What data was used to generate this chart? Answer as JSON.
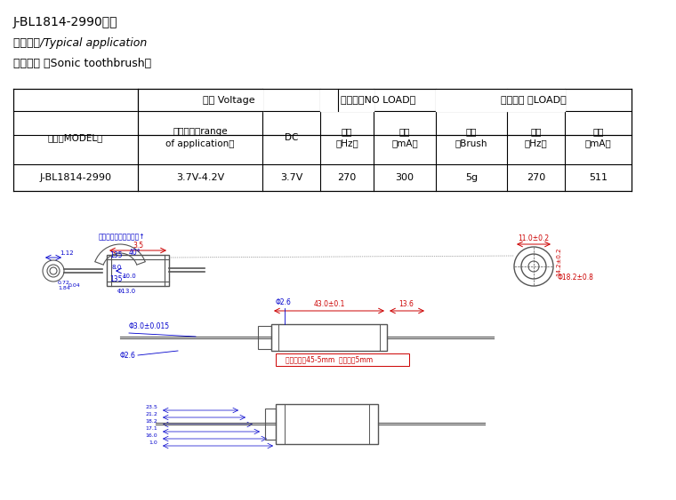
{
  "title_line1": "J-BL1814-2990系列",
  "title_line2": "典型应用/Typical application",
  "title_line3": "声波牙刷 （Sonic toothbrush）",
  "table_header_row0": [
    "",
    "电压 Voltage",
    "",
    "无负载（NO LOAD）",
    "",
    "负载特性 （LOAD）",
    "",
    ""
  ],
  "table_header_row1": [
    "型号（MODEL）",
    "使用范围（range\nof application）",
    "DC",
    "赫兹\n（Hz）",
    "电流\n（mA）",
    "刷头\n（Brush",
    "赫兹\n（Hz）",
    "电流\n（mA）"
  ],
  "table_data": [
    "J-BL1814-2990",
    "3.7V-4.2V",
    "3.7V",
    "270",
    "300",
    "5g",
    "270",
    "511"
  ],
  "bg_color": "#ffffff",
  "text_color": "#000000",
  "table_line_color": "#000000",
  "drawing_color_blue": "#0000cc",
  "drawing_color_red": "#cc0000",
  "drawing_color_gray": "#555555"
}
